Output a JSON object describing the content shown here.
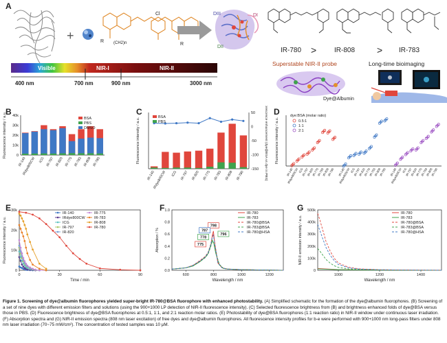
{
  "panel_a": {
    "letter": "A",
    "spectrum_labels": [
      "Visible",
      "NIR-I",
      "NIR-II"
    ],
    "spectrum_ticks": [
      "400 nm",
      "700 nm",
      "900 nm",
      "3000 nm"
    ],
    "domain_labels": [
      "DIII",
      "DII",
      "DI"
    ],
    "mol_r_label": "R",
    "mol_chain_label": "(CH2)n",
    "mol_cl_label": "Cl",
    "ranking": [
      "IR-780",
      ">",
      "IR-808",
      ">",
      "IR-783"
    ],
    "probe_label": "Superstable NIR-II probe",
    "bioimaging_label": "Long-time bioimaging",
    "complex_label": "Dye@Albumin",
    "colors": {
      "arrow": "#8a8a8a",
      "probe_label": "#b0451e",
      "protein": "#7a6fc8",
      "dye": "#e08a2a"
    }
  },
  "chart_data": [
    {
      "panel": "B",
      "type": "bar",
      "ylabel": "Fluorescence intensity / a.u.",
      "yticks": [
        "0",
        "10k",
        "20k",
        "30k",
        "40k"
      ],
      "ylim": [
        0,
        40000
      ],
      "categories": [
        "IR-140",
        "IRdye800CW",
        "ICG",
        "IR-797",
        "IR-820",
        "IR-775",
        "IR-783",
        "IR-808",
        "IR-780"
      ],
      "legend": [
        "BSA",
        "PBS",
        "DMSO"
      ],
      "series": [
        {
          "name": "DMSO",
          "color": "#3f78c5",
          "values": [
            22000,
            23500,
            26000,
            25000,
            27000,
            14000,
            16500,
            17500,
            17000
          ]
        },
        {
          "name": "PBS",
          "color": "#3fa34d",
          "values": [
            200,
            300,
            400,
            300,
            500,
            700,
            600,
            600,
            400
          ]
        },
        {
          "name": "BSA",
          "color": "#e0463c",
          "values": [
            22500,
            24000,
            30000,
            26000,
            29000,
            21000,
            26000,
            29000,
            26000
          ]
        }
      ]
    },
    {
      "panel": "C",
      "type": "bar",
      "ylabel": "Fluorescence intensity / a.u.",
      "y2label": "Fluorescence enhancement (dye@BSA vs dye in PBS)",
      "categories": [
        "IR-140",
        "IRdye800CW",
        "ICG",
        "IR-797",
        "IR-820",
        "IR-775",
        "IR-783",
        "IR-808",
        "IR-780"
      ],
      "legend": [
        "BSA",
        "PBS"
      ],
      "ylim": [
        0,
        14000
      ],
      "y2lim": [
        -150,
        50
      ],
      "y2ticks": [
        "50",
        "0",
        "-50",
        "-100",
        "-150"
      ],
      "series": [
        {
          "name": "BSA",
          "color": "#e0463c",
          "values": [
            600,
            4200,
            4000,
            4300,
            4500,
            5000,
            9000,
            11200,
            8300
          ]
        },
        {
          "name": "PBS",
          "color": "#3fa34d",
          "values": [
            300,
            200,
            300,
            300,
            200,
            500,
            1600,
            1500,
            400
          ]
        },
        {
          "name": "enhancement",
          "color": "#3f78c5",
          "values": [
            12,
            11,
            12,
            14,
            12,
            30,
            17,
            25,
            20
          ]
        }
      ]
    },
    {
      "panel": "D",
      "type": "scatter",
      "ylabel": "Fluorescence intensity / a.u.",
      "legend_title": "dye:BSA (molar ratio)",
      "legend": [
        "0.5:1",
        "1:1",
        "2:1"
      ],
      "colors": [
        "#e0463c",
        "#3f78c5",
        "#9b4fc2"
      ],
      "group_labels": [
        "IR-140",
        "IRdye800CW",
        "ICG",
        "IR-797",
        "IR-820",
        "IR-775",
        "IR-783",
        "IR-808",
        "IR-780"
      ],
      "groups": [
        {
          "name": "0.5:1",
          "values": [
            0.3,
            1.3,
            2.2,
            2.8,
            3.7,
            5.3,
            7.5,
            7.4,
            6.0
          ]
        },
        {
          "name": "1:1",
          "values": [
            0.2,
            2.0,
            2.5,
            2.8,
            3.0,
            4.0,
            6.5,
            9.5,
            10.0
          ]
        },
        {
          "name": "2:1",
          "values": [
            0.4,
            1.7,
            2.7,
            3.5,
            3.7,
            5.3,
            6.2,
            7.6,
            8.8
          ]
        }
      ]
    },
    {
      "panel": "E",
      "type": "line",
      "xlabel": "Time / min",
      "ylabel": "Fluorescence intensity / a.u.",
      "xticks": [
        "0",
        "30",
        "60",
        "90"
      ],
      "yticks": [
        "0",
        "10k",
        "20k",
        "30k"
      ],
      "xlim": [
        0,
        90
      ],
      "ylim": [
        0,
        32000
      ],
      "series": [
        {
          "name": "IR-140",
          "color": "#3f78c5",
          "x": [
            0,
            1,
            2,
            3,
            4,
            5,
            6,
            8,
            10,
            12,
            15,
            20
          ],
          "y": [
            2000,
            1500,
            1200,
            800,
            500,
            300,
            200,
            100,
            0,
            0,
            0,
            0
          ]
        },
        {
          "name": "IRdye800CW",
          "color": "#5b3a8e",
          "x": [
            0,
            1,
            2,
            3,
            4,
            5,
            6,
            8,
            10,
            12,
            15,
            20
          ],
          "y": [
            7000,
            5000,
            3000,
            2000,
            1200,
            800,
            500,
            300,
            200,
            0,
            0,
            0
          ]
        },
        {
          "name": "ICG",
          "color": "#5ec3c1",
          "x": [
            0,
            1,
            2,
            3,
            4,
            5,
            6,
            8,
            10,
            12,
            15,
            20
          ],
          "y": [
            10000,
            7000,
            5000,
            3500,
            2500,
            1800,
            1200,
            700,
            400,
            200,
            0,
            0
          ]
        },
        {
          "name": "IR-797",
          "color": "#a8c96a",
          "x": [
            0,
            1,
            2,
            3,
            4,
            5,
            6,
            8,
            10,
            12,
            15,
            20
          ],
          "y": [
            12000,
            9000,
            6500,
            4800,
            3500,
            2500,
            1800,
            1000,
            500,
            200,
            0,
            0
          ]
        },
        {
          "name": "IR-820",
          "color": "#78a0d6",
          "x": [
            0,
            1,
            2,
            3,
            4,
            5,
            6,
            8,
            10,
            12,
            15,
            20
          ],
          "y": [
            13000,
            10000,
            7500,
            5500,
            4000,
            3000,
            2000,
            1200,
            700,
            300,
            0,
            0
          ]
        },
        {
          "name": "IR-775",
          "color": "#c58ad6",
          "x": [
            0,
            1,
            2,
            3,
            4,
            5,
            6,
            8,
            10,
            12,
            15,
            20
          ],
          "y": [
            16000,
            12000,
            9000,
            6500,
            4800,
            3500,
            2500,
            1500,
            800,
            300,
            0,
            0
          ]
        },
        {
          "name": "IR-783",
          "color": "#e9822a",
          "x": [
            0,
            1,
            2,
            3,
            4,
            5,
            6,
            8,
            10,
            15,
            20
          ],
          "y": [
            24000,
            22000,
            20000,
            18000,
            15500,
            12000,
            9000,
            5500,
            3000,
            800,
            0
          ]
        },
        {
          "name": "IR-808",
          "color": "#e6a02a",
          "x": [
            0,
            1,
            2,
            3,
            4,
            5,
            6,
            8,
            10,
            15,
            20
          ],
          "y": [
            30000,
            29000,
            27500,
            26000,
            24000,
            22000,
            19000,
            15000,
            11000,
            3500,
            800
          ]
        },
        {
          "name": "IR-780",
          "color": "#e0463c",
          "x": [
            0,
            5,
            10,
            15,
            20,
            25,
            30,
            35,
            40,
            45,
            50,
            60,
            75,
            90
          ],
          "y": [
            31000,
            30500,
            29500,
            27500,
            24500,
            21000,
            17500,
            13000,
            9000,
            6000,
            3500,
            1000,
            300,
            0
          ]
        }
      ]
    },
    {
      "panel": "F",
      "type": "line",
      "xlabel": "Wavelength / nm",
      "ylabel": "Absorption / %",
      "xticks": [
        "600",
        "800",
        "1000",
        "1200"
      ],
      "yticks": [
        "0.0",
        "0.2",
        "0.4",
        "0.6",
        "0.8",
        "1.0"
      ],
      "xlim": [
        500,
        1300
      ],
      "ylim": [
        0,
        1.0
      ],
      "peak_labels": [
        "798",
        "787",
        "778",
        "796",
        "775"
      ],
      "series": [
        {
          "name": "IR-780",
          "color": "#e0463c",
          "dash": "",
          "x": [
            500,
            600,
            650,
            700,
            740,
            760,
            780,
            790,
            798,
            810,
            830,
            860,
            900,
            1000,
            1300
          ],
          "y": [
            0.02,
            0.04,
            0.08,
            0.15,
            0.22,
            0.28,
            0.42,
            0.58,
            0.65,
            0.4,
            0.12,
            0.04,
            0.02,
            0.01,
            0.0
          ]
        },
        {
          "name": "IR-783",
          "color": "#3fa34d",
          "dash": "",
          "x": [
            500,
            600,
            650,
            700,
            740,
            760,
            780,
            790,
            800,
            815,
            840,
            870,
            900,
            1000,
            1300
          ],
          "y": [
            0.02,
            0.04,
            0.07,
            0.14,
            0.22,
            0.28,
            0.42,
            0.5,
            0.45,
            0.28,
            0.09,
            0.03,
            0.02,
            0.01,
            0.0
          ]
        },
        {
          "name": "IR-780@BSA",
          "color": "#e0463c",
          "dash": "3,2",
          "x": [
            500,
            600,
            650,
            700,
            740,
            760,
            780,
            790,
            798,
            810,
            830,
            860,
            900,
            1000,
            1300
          ],
          "y": [
            0.02,
            0.04,
            0.08,
            0.16,
            0.23,
            0.3,
            0.44,
            0.56,
            0.6,
            0.42,
            0.14,
            0.04,
            0.02,
            0.01,
            0.0
          ]
        },
        {
          "name": "IR-783@BSA",
          "color": "#3fa34d",
          "dash": "3,2",
          "x": [
            500,
            600,
            650,
            700,
            740,
            760,
            780,
            790,
            800,
            815,
            840,
            870,
            900,
            1000,
            1300
          ],
          "y": [
            0.02,
            0.04,
            0.07,
            0.14,
            0.21,
            0.27,
            0.4,
            0.48,
            0.46,
            0.3,
            0.1,
            0.03,
            0.02,
            0.01,
            0.0
          ]
        },
        {
          "name": "IR-780@HSA",
          "color": "#3f78c5",
          "dash": "3,2",
          "x": [
            500,
            600,
            650,
            700,
            740,
            760,
            780,
            790,
            798,
            810,
            830,
            860,
            900,
            1000,
            1300
          ],
          "y": [
            0.02,
            0.04,
            0.08,
            0.15,
            0.22,
            0.29,
            0.43,
            0.55,
            0.58,
            0.4,
            0.13,
            0.04,
            0.02,
            0.01,
            0.0
          ]
        }
      ]
    },
    {
      "panel": "G",
      "type": "line",
      "xlabel": "Wavelength / nm",
      "ylabel": "NIR-II emission intensity / a.u.",
      "xticks": [
        "1000",
        "1200",
        "1400"
      ],
      "yticks": [
        "0",
        "100k",
        "200k",
        "300k",
        "400k",
        "500k"
      ],
      "xlim": [
        900,
        1500
      ],
      "ylim": [
        0,
        500000
      ],
      "series": [
        {
          "name": "IR-780",
          "color": "#e0463c",
          "dash": "",
          "x": [
            900,
            950,
            1000,
            1100,
            1200,
            1300,
            1400,
            1500
          ],
          "y": [
            15000,
            10000,
            6000,
            3000,
            1500,
            800,
            500,
            300
          ]
        },
        {
          "name": "IR-783",
          "color": "#3fa34d",
          "dash": "",
          "x": [
            900,
            950,
            1000,
            1100,
            1200,
            1300,
            1400,
            1500
          ],
          "y": [
            12000,
            8000,
            5000,
            2500,
            1200,
            700,
            400,
            200
          ]
        },
        {
          "name": "IR-780@BSA",
          "color": "#e0463c",
          "dash": "3,2",
          "x": [
            900,
            910,
            925,
            940,
            960,
            980,
            1000,
            1050,
            1100,
            1200,
            1300,
            1400,
            1500
          ],
          "y": [
            470000,
            420000,
            330000,
            240000,
            160000,
            100000,
            60000,
            25000,
            12000,
            5000,
            2500,
            1500,
            800
          ]
        },
        {
          "name": "IR-783@BSA",
          "color": "#3fa34d",
          "dash": "3,2",
          "x": [
            900,
            910,
            925,
            940,
            960,
            980,
            1000,
            1050,
            1100,
            1200,
            1300,
            1400,
            1500
          ],
          "y": [
            180000,
            160000,
            125000,
            90000,
            60000,
            38000,
            24000,
            11000,
            6000,
            3000,
            1500,
            900,
            500
          ]
        },
        {
          "name": "IR-780@HSA",
          "color": "#3f78c5",
          "dash": "3,2",
          "x": [
            900,
            910,
            925,
            940,
            960,
            980,
            1000,
            1050,
            1100,
            1200,
            1300,
            1400,
            1500
          ],
          "y": [
            380000,
            330000,
            260000,
            190000,
            125000,
            80000,
            48000,
            20000,
            10000,
            4000,
            2000,
            1200,
            600
          ]
        }
      ]
    }
  ],
  "caption": {
    "title": "Figure 1. Screening of dye@albumin fluorophores yielded super-bright IR-780@BSA fluorophore with enhanced photostability.",
    "body": " (A) Simplified schematic for the formation of the dye@albumin fluorophores. (B) Screening of a set of nine dyes with different emission filters and solutions (using the 900+1000 LP detection of NIR-II fluorescence intensity). (C) Selected fluorescence brightness from (B) and brightness enhanced folds of dye@BSA versus those in PBS. (D) Fluorescence brightness of dye@BSA fluorophores at 0.5:1, 1:1, and 2:1 reaction molar ratios. (E) Photostability of dye@BSA fluorophores (1:1 reaction ratio) in NIR-II window under continuous laser irradiation. (F) Absorption spectra and (G) NIR-II emission spectra (808 nm laser excitation) of free dyes and dye@albumin fluorophores. All fluorescence intensity profiles for b-e were performed with 900+1000 nm long-pass filters under 808 nm laser irradiation (70~75 mW/cm²). The concentration of tested samples was 10 μM."
  }
}
